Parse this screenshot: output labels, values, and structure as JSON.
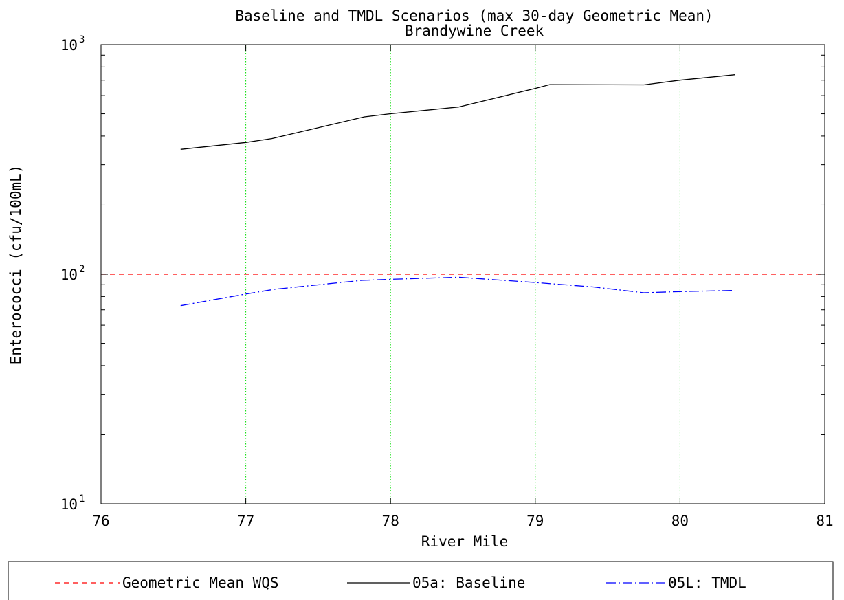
{
  "chart_data": {
    "type": "line",
    "title": "Baseline and TMDL Scenarios (max 30-day Geometric Mean)",
    "subtitle": "Brandywine Creek",
    "xlabel": "River Mile",
    "ylabel": "Enterococci (cfu/100mL)",
    "xlim": [
      76,
      81
    ],
    "ylim": [
      10,
      1000
    ],
    "yscale": "log",
    "x_ticks": [
      76,
      77,
      78,
      79,
      80,
      81
    ],
    "y_ticks": [
      {
        "value": 10,
        "base": "10",
        "exp": "1"
      },
      {
        "value": 100,
        "base": "10",
        "exp": "2"
      },
      {
        "value": 1000,
        "base": "10",
        "exp": "3"
      }
    ],
    "grid": "vertical",
    "legend_position": "bottom",
    "reference_line": {
      "name": "Geometric Mean WQS",
      "y": 100,
      "color": "#ff0000",
      "style": "dashed"
    },
    "series": [
      {
        "name": "05a: Baseline",
        "color": "#000000",
        "style": "solid",
        "x": [
          76.55,
          77.0,
          77.18,
          77.82,
          78.0,
          78.47,
          79.0,
          79.1,
          79.75,
          80.0,
          80.38
        ],
        "y": [
          350,
          375,
          390,
          485,
          500,
          535,
          645,
          670,
          668,
          700,
          740
        ]
      },
      {
        "name": "05L: TMDL",
        "color": "#0000ff",
        "style": "dashdot",
        "x": [
          76.55,
          77.0,
          77.2,
          77.8,
          78.0,
          78.47,
          79.0,
          79.4,
          79.75,
          80.0,
          80.38
        ],
        "y": [
          73,
          82,
          86,
          94,
          95,
          97,
          92,
          88,
          83,
          84,
          85
        ]
      }
    ]
  }
}
